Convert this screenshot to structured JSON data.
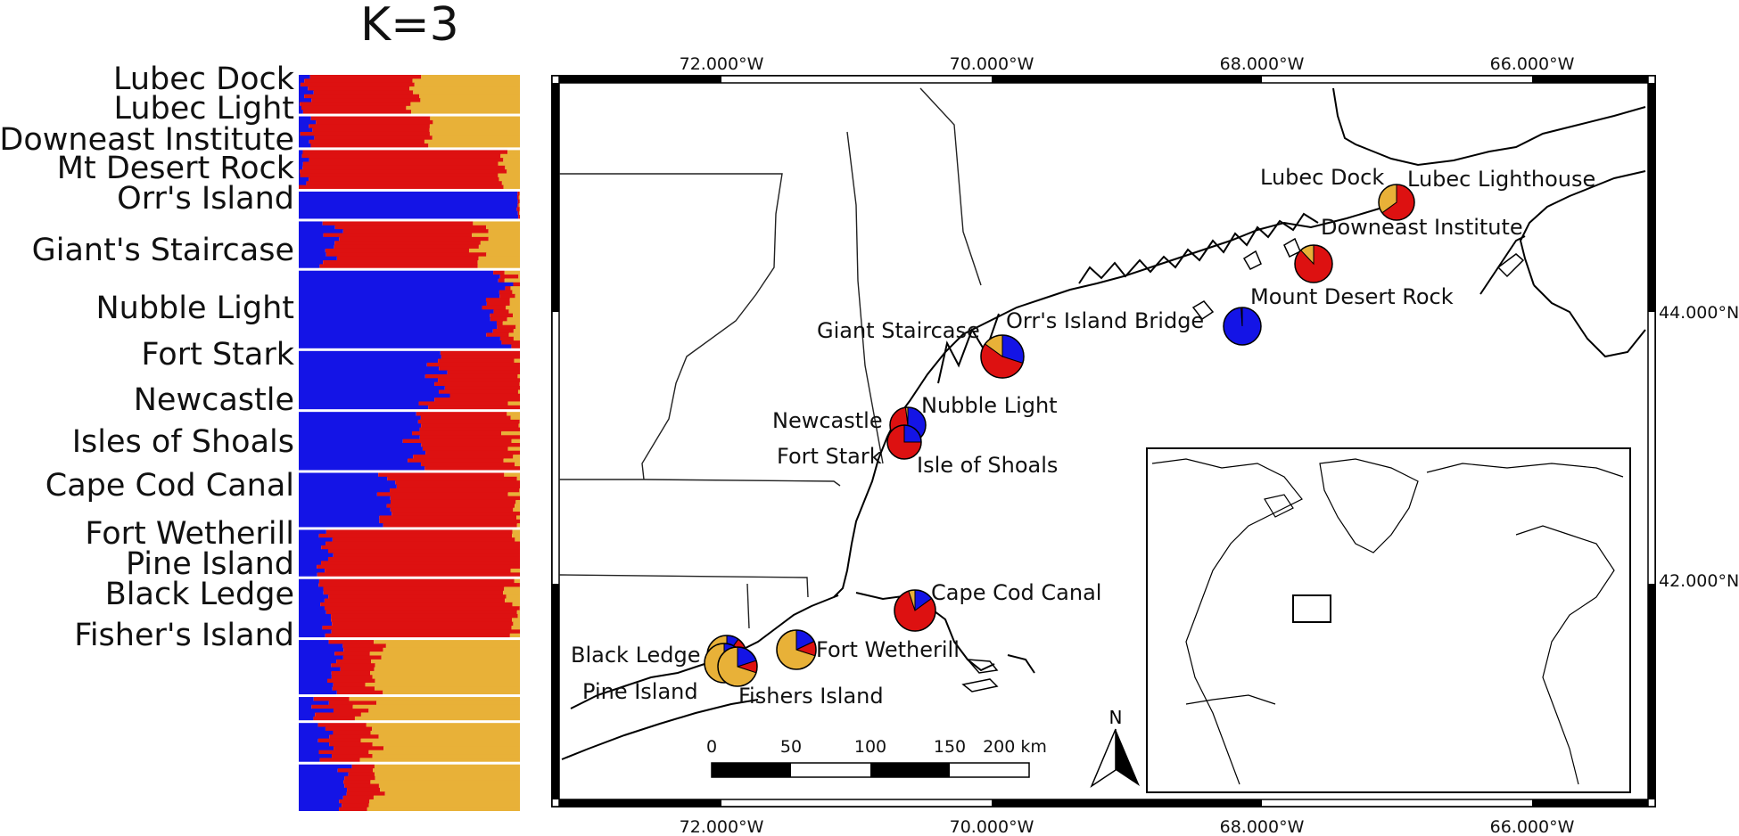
{
  "structure_plot": {
    "title": "K=3",
    "cluster_colors": {
      "cluster1": "#1414e6",
      "cluster2": "#dd1111",
      "cluster3": "#e8b138"
    },
    "populations": [
      {
        "label": "Lubec Dock",
        "n": 10,
        "profile": [
          0.05,
          0.48,
          0.47
        ],
        "noise": 0.05
      },
      {
        "label": "Lubec Light",
        "n": 8,
        "profile": [
          0.04,
          0.54,
          0.42
        ],
        "noise": 0.04
      },
      {
        "label": "Downeast Institute",
        "n": 10,
        "profile": [
          0.02,
          0.9,
          0.08
        ],
        "noise": 0.03
      },
      {
        "label": "Mt Desert Rock",
        "n": 7,
        "profile": [
          0.99,
          0.01,
          0.0
        ],
        "noise": 0.005
      },
      {
        "label": "Orr's Island",
        "n": 12,
        "profile": [
          0.15,
          0.66,
          0.19
        ],
        "noise": 0.06
      },
      {
        "label": "Giant's Staircase",
        "n": 20,
        "profile": [
          0.9,
          0.07,
          0.03
        ],
        "noise": 0.05
      },
      {
        "label": "Nubble Light",
        "n": 15,
        "profile": [
          0.62,
          0.38,
          0.0
        ],
        "noise": 0.08
      },
      {
        "label": "Fort Stark",
        "n": 15,
        "profile": [
          0.54,
          0.44,
          0.02
        ],
        "noise": 0.08
      },
      {
        "label": "Newcastle",
        "n": 14,
        "profile": [
          0.4,
          0.58,
          0.02
        ],
        "noise": 0.06
      },
      {
        "label": "Isles of Shoals",
        "n": 12,
        "profile": [
          0.12,
          0.88,
          0.0
        ],
        "noise": 0.05
      },
      {
        "label": "Cape Cod Canal",
        "n": 15,
        "profile": [
          0.12,
          0.84,
          0.04
        ],
        "noise": 0.05
      },
      {
        "label": "Fort Wetherill",
        "n": 14,
        "profile": [
          0.18,
          0.17,
          0.65
        ],
        "noise": 0.05
      },
      {
        "label": "Pine Island",
        "n": 6,
        "profile": [
          0.1,
          0.2,
          0.7
        ],
        "noise": 0.05
      },
      {
        "label": "Black Ledge",
        "n": 10,
        "profile": [
          0.12,
          0.2,
          0.68
        ],
        "noise": 0.05
      },
      {
        "label": "Fisher's Island",
        "n": 12,
        "profile": [
          0.2,
          0.14,
          0.66
        ],
        "noise": 0.04
      }
    ]
  },
  "map": {
    "top_axis_labels": [
      "72.000°W",
      "70.000°W",
      "68.000°W",
      "66.000°W"
    ],
    "bottom_axis_labels": [
      "72.000°W",
      "70.000°W",
      "68.000°W",
      "66.000°W"
    ],
    "right_axis_labels": [
      "44.000°N",
      "42.000°N"
    ],
    "site_labels": {
      "lubec_dock": "Lubec Dock",
      "lubec_lighthouse": "Lubec Lighthouse",
      "downeast_institute": "Downeast Institute",
      "mount_desert_rock": "Mount Desert Rock",
      "orrs_island_bridge": "Orr's Island Bridge",
      "giant_staircase": "Giant Staircase",
      "newcastle": "Newcastle",
      "nubble_light": "Nubble Light",
      "fort_stark": "Fort Stark",
      "isle_of_shoals": "Isle of Shoals",
      "cape_cod_canal": "Cape Cod Canal",
      "black_ledge": "Black Ledge",
      "fort_wetherill": "Fort Wetherill",
      "pine_island": "Pine Island",
      "fishers_island": "Fishers Island"
    },
    "pies": [
      {
        "site": "Lubec",
        "values": [
          0.0,
          0.65,
          0.35
        ]
      },
      {
        "site": "Downeast Institute",
        "values": [
          0.0,
          0.88,
          0.12
        ]
      },
      {
        "site": "Mount Desert Rock",
        "values": [
          0.99,
          0.01,
          0.0
        ]
      },
      {
        "site": "Orr's Island / Giant Staircase",
        "values": [
          0.3,
          0.55,
          0.15
        ]
      },
      {
        "site": "Nubble Light / Newcastle",
        "values": [
          0.55,
          0.43,
          0.02
        ]
      },
      {
        "site": "Fort Stark / Isle of Shoals",
        "values": [
          0.25,
          0.75,
          0.0
        ]
      },
      {
        "site": "Cape Cod Canal",
        "values": [
          0.15,
          0.8,
          0.05
        ]
      },
      {
        "site": "Fort Wetherill",
        "values": [
          0.18,
          0.12,
          0.7
        ]
      },
      {
        "site": "Black Ledge",
        "values": [
          0.1,
          0.3,
          0.6
        ]
      },
      {
        "site": "Pine Island",
        "values": [
          0.1,
          0.2,
          0.7
        ]
      },
      {
        "site": "Fishers Island",
        "values": [
          0.2,
          0.1,
          0.7
        ]
      }
    ],
    "scale_bar": {
      "ticks": [
        "0",
        "50",
        "100",
        "150",
        "200 km"
      ]
    },
    "north_arrow": "N"
  }
}
